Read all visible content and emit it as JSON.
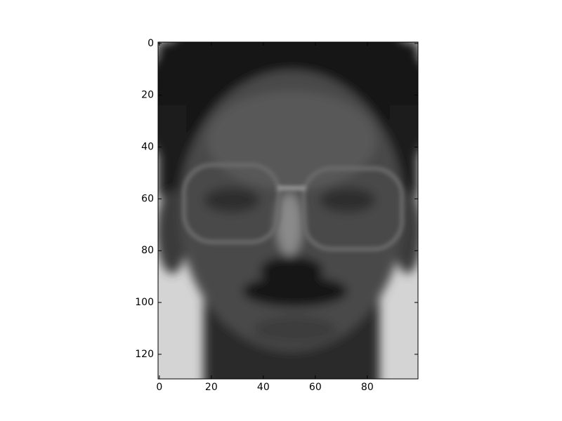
{
  "chart_data": {
    "type": "image",
    "xlim": [
      -0.5,
      99.5
    ],
    "ylim": [
      129.5,
      -0.5
    ],
    "xticks": [
      0,
      20,
      40,
      60,
      80
    ],
    "yticks": [
      0,
      20,
      40,
      60,
      80,
      100,
      120
    ]
  }
}
